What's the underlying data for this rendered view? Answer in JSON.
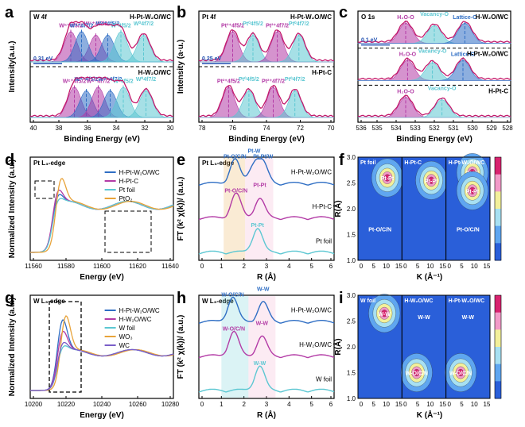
{
  "colors": {
    "env": "#c2186b",
    "orange": "#e8a33a",
    "cyan": "#5cc7d2",
    "blue": "#2f6ec4",
    "magenta": "#b33ba6",
    "violet": "#7a5ec8",
    "pink": "#f0a6c8",
    "axis": "#000000"
  },
  "chart_data": [
    {
      "panel": "a",
      "type": "area",
      "title": "W 4f",
      "xlabel": "Binding Energy (eV)",
      "ylabel": "Intensity(a.u.)",
      "xlim": [
        41,
        29
      ],
      "xticks": [
        "40",
        "38",
        "36",
        "34",
        "32",
        "30"
      ],
      "samples": [
        {
          "name": "H-Pt-W₂O/WC",
          "position": "top",
          "peaks": [
            {
              "label": "W⁶⁺4f5/2",
              "x": 37.6,
              "color": "magenta"
            },
            {
              "label": "W⁶⁺4f7/2",
              "x": 35.5,
              "color": "magenta"
            },
            {
              "label": "W⁴⁺4f7/2",
              "x": 36.7,
              "color": "blue"
            },
            {
              "label": "W⁴⁺4f5/2",
              "x": 34.5,
              "color": "blue"
            },
            {
              "label": "W⁰4f5/2",
              "x": 33.4,
              "color": "cyan"
            },
            {
              "label": "W⁰4f7/2",
              "x": 31.5,
              "color": "cyan"
            }
          ]
        },
        {
          "name": "H-W₂O/WC",
          "position": "bottom",
          "peaks": [
            {
              "label": "W⁶⁺4f5/2",
              "x": 37.3,
              "color": "magenta"
            },
            {
              "label": "W⁴⁺4f5/2",
              "x": 36.3,
              "color": "blue"
            },
            {
              "label": "W⁶⁺4f7/2",
              "x": 35.3,
              "color": "magenta"
            },
            {
              "label": "W⁴⁺4f7/2",
              "x": 34.3,
              "color": "blue"
            },
            {
              "label": "W⁰4f5/2",
              "x": 33.2,
              "color": "cyan"
            },
            {
              "label": "W⁰4f7/2",
              "x": 31.3,
              "color": "cyan"
            }
          ]
        }
      ],
      "annotation": {
        "text": "0.31 eV",
        "shift": 0.31
      }
    },
    {
      "panel": "b",
      "type": "area",
      "title": "Pt 4f",
      "xlabel": "Binding Energy (eV)",
      "ylabel": "Intensity (a·u.)",
      "xlim": [
        79,
        69
      ],
      "xticks": [
        "78",
        "76",
        "74",
        "72",
        "70"
      ],
      "samples": [
        {
          "name": "H-Pt-W₂O/WC",
          "position": "top",
          "peaks": [
            {
              "label": "Pt²⁺4f5/2",
              "x": 76.5,
              "color": "magenta"
            },
            {
              "label": "Pt⁰4f5/2",
              "x": 75.0,
              "color": "cyan"
            },
            {
              "label": "Pt²⁺4f7/2",
              "x": 73.2,
              "color": "magenta"
            },
            {
              "label": "Pt⁰4f7/2",
              "x": 71.6,
              "color": "cyan"
            }
          ]
        },
        {
          "name": "H-Pt-C",
          "position": "bottom",
          "peaks": [
            {
              "label": "Pt²⁺4f5/2",
              "x": 76.8,
              "color": "magenta"
            },
            {
              "label": "Pt⁰4f5/2",
              "x": 75.3,
              "color": "cyan"
            },
            {
              "label": "Pt²⁺4f7/2",
              "x": 73.5,
              "color": "magenta"
            },
            {
              "label": "Pt⁰4f7/2",
              "x": 71.9,
              "color": "cyan"
            }
          ]
        }
      ],
      "annotation": {
        "text": "0.25 eV",
        "shift": 0.25
      }
    },
    {
      "panel": "c",
      "type": "area",
      "title": "O 1s",
      "xlabel": "Binding Energy (eV)",
      "ylabel": "",
      "xlim": [
        536,
        528
      ],
      "xticks": [
        "536",
        "535",
        "534",
        "533",
        "532",
        "531",
        "530",
        "529",
        "528"
      ],
      "samples": [
        {
          "name": "H-W₂O/WC",
          "position": "top",
          "peaks": [
            {
              "label": "H₂O-O",
              "x": 533.5,
              "color": "magenta"
            },
            {
              "label": "Vacancy-O",
              "x": 532.0,
              "color": "cyan"
            },
            {
              "label": "Lattice-O",
              "x": 530.4,
              "color": "blue"
            }
          ]
        },
        {
          "name": "H-Pt-W₂O/WC",
          "position": "middle",
          "peaks": [
            {
              "label": "H₂O-O",
              "x": 533.4,
              "color": "magenta"
            },
            {
              "label": "Vacancy-O",
              "x": 532.1,
              "color": "cyan"
            },
            {
              "label": "Lattice-O",
              "x": 530.5,
              "color": "blue"
            }
          ]
        },
        {
          "name": "H-Pt-C",
          "position": "bottom",
          "peaks": [
            {
              "label": "H₂O-O",
              "x": 533.5,
              "color": "magenta"
            },
            {
              "label": "Vacancy-O",
              "x": 531.6,
              "color": "cyan"
            }
          ]
        }
      ],
      "annotation": {
        "text": "0.1 eV",
        "shift": 0.1
      }
    },
    {
      "panel": "d",
      "type": "line",
      "title": "Pt L₃-edge",
      "xlabel": "Energy (eV)",
      "ylabel": "Normalized Intensity (a.u.)",
      "xlim": [
        11550,
        11640
      ],
      "xticks": [
        "11560",
        "11580",
        "11600",
        "11620",
        "11640"
      ],
      "series": [
        {
          "name": "H-Pt-W₂O/WC",
          "color": "blue",
          "edge": 11564,
          "peak": 1.25
        },
        {
          "name": "H-Pt-C",
          "color": "magenta",
          "edge": 11564,
          "peak": 1.35
        },
        {
          "name": "Pt foil",
          "color": "cyan",
          "edge": 11564,
          "peak": 1.15
        },
        {
          "name": "PtO₂",
          "color": "orange",
          "edge": 11566,
          "peak": 1.6
        }
      ]
    },
    {
      "panel": "e",
      "type": "line",
      "title": "Pt L₃-edge",
      "xlabel": "R (Å)",
      "ylabel": "FT (k² χ(k))/ (a.u.)",
      "xlim": [
        0,
        6
      ],
      "xticks": [
        "0",
        "1",
        "2",
        "3",
        "4",
        "5",
        "6"
      ],
      "bands": [
        {
          "from": 1.1,
          "to": 2.05,
          "color": "orange"
        },
        {
          "from": 2.05,
          "to": 3.3,
          "color": "pink"
        }
      ],
      "series": [
        {
          "name": "H-Pt-W₂O/WC",
          "color": "blue",
          "peaks": [
            {
              "r": 1.6,
              "label": "Pt-O/C/N"
            },
            {
              "r": 2.45,
              "label": "Pt-W"
            },
            {
              "r": 2.85,
              "label": "Pt-Pt/W"
            }
          ]
        },
        {
          "name": "H-Pt-C",
          "color": "magenta",
          "peaks": [
            {
              "r": 1.65,
              "label": "Pt-O/C/N"
            },
            {
              "r": 2.7,
              "label": "Pt-Pt"
            }
          ]
        },
        {
          "name": "Pt foil",
          "color": "cyan",
          "peaks": [
            {
              "r": 2.6,
              "label": "Pt-Pt"
            }
          ]
        }
      ]
    },
    {
      "panel": "f",
      "type": "heatmap",
      "xlabel": "K (Å⁻¹)",
      "ylabel": "R(Å)",
      "xlim": [
        0,
        15
      ],
      "ylim": [
        1.0,
        3.0
      ],
      "xticks": [
        "0",
        "5",
        "10",
        "15"
      ],
      "yticks": [
        "1.0",
        "1.5",
        "2.0",
        "2.5",
        "3.0"
      ],
      "subplots": [
        {
          "name": "Pt foil",
          "hotspots": [
            {
              "k": 10,
              "r": 2.6,
              "label": "Pt-Pt"
            }
          ],
          "labels": [
            "Pt-O/C/N"
          ]
        },
        {
          "name": "H-Pt-C",
          "hotspots": [
            {
              "k": 10,
              "r": 2.55,
              "label": "Pt-Pt"
            }
          ],
          "labels": []
        },
        {
          "name": "H-Pt-W₂O/WC",
          "hotspots": [
            {
              "k": 9,
              "r": 2.7,
              "label": "Pt-W"
            },
            {
              "k": 9,
              "r": 2.35,
              "label": "Pt-Pt"
            }
          ],
          "labels": [
            "Pt-O/C/N"
          ]
        }
      ],
      "colorbar": [
        0,
        1
      ]
    },
    {
      "panel": "g",
      "type": "line",
      "title": "W L₃-edge",
      "xlabel": "Energy (eV)",
      "ylabel": "Normalized Intensity (a.u.)",
      "xlim": [
        10190,
        10280
      ],
      "xticks": [
        "10200",
        "10220",
        "10240",
        "10260",
        "10280"
      ],
      "series": [
        {
          "name": "H-Pt-W₂O/WC",
          "color": "blue",
          "edge": 10207,
          "peak": 1.9
        },
        {
          "name": "H-W₂O/WC",
          "color": "magenta",
          "edge": 10207,
          "peak": 1.6
        },
        {
          "name": "W foil",
          "color": "cyan",
          "edge": 10207,
          "peak": 1.2
        },
        {
          "name": "WO₃",
          "color": "orange",
          "edge": 10209,
          "peak": 2.0
        },
        {
          "name": "WC",
          "color": "violet",
          "edge": 10207,
          "peak": 1.3
        }
      ]
    },
    {
      "panel": "h",
      "type": "line",
      "title": "W L₃-edge",
      "xlabel": "R (Å)",
      "ylabel": "FT (k² χ(k))/ (a.u.)",
      "xlim": [
        0,
        6
      ],
      "xticks": [
        "0",
        "1",
        "2",
        "3",
        "4",
        "5",
        "6"
      ],
      "bands": [
        {
          "from": 1.0,
          "to": 2.2,
          "color": "cyan"
        },
        {
          "from": 2.2,
          "to": 3.4,
          "color": "pink"
        }
      ],
      "series": [
        {
          "name": "H-Pt-W₂O/WC",
          "color": "blue",
          "peaks": [
            {
              "r": 1.5,
              "label": "W-O/C/N"
            },
            {
              "r": 2.85,
              "label": "W-W"
            }
          ]
        },
        {
          "name": "H-W₂O/WC",
          "color": "magenta",
          "peaks": [
            {
              "r": 1.55,
              "label": "W-O/C/N"
            },
            {
              "r": 2.8,
              "label": "W-W"
            }
          ]
        },
        {
          "name": "W foil",
          "color": "cyan",
          "peaks": [
            {
              "r": 2.7,
              "label": "W-W"
            }
          ]
        }
      ]
    },
    {
      "panel": "i",
      "type": "heatmap",
      "xlabel": "K (Å⁻¹)",
      "ylabel": "R(Å)",
      "xlim": [
        0,
        15
      ],
      "ylim": [
        1.0,
        3.0
      ],
      "xticks": [
        "0",
        "5",
        "10",
        "15"
      ],
      "yticks": [
        "1.0",
        "1.5",
        "2.0",
        "2.5",
        "3.0"
      ],
      "subplots": [
        {
          "name": "W foil",
          "hotspots": [
            {
              "k": 9,
              "r": 2.65,
              "label": "W-W"
            }
          ],
          "labels": []
        },
        {
          "name": "H-W₂O/WC",
          "hotspots": [
            {
              "k": 5,
              "r": 1.5,
              "label": "W-O/C/N"
            }
          ],
          "labels": [
            "W-W"
          ]
        },
        {
          "name": "H-Pt-W₂O/WC",
          "hotspots": [
            {
              "k": 5,
              "r": 1.5,
              "label": "W-O/C/N"
            }
          ],
          "labels": [
            "W-W"
          ]
        }
      ],
      "colorbar": [
        0,
        1
      ]
    }
  ]
}
